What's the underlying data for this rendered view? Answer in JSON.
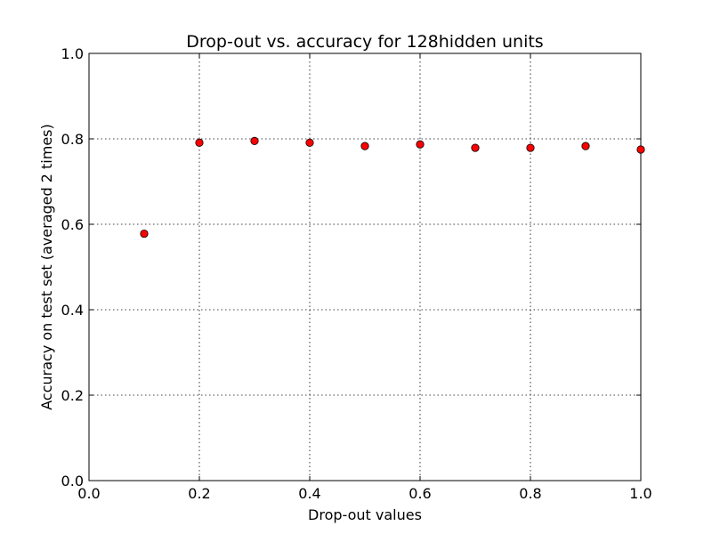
{
  "chart_data": {
    "type": "scatter",
    "title": "Drop-out vs. accuracy for 128hidden units",
    "xlabel": "Drop-out values",
    "ylabel": "Accuracy on test set (averaged 2 times)",
    "xlim": [
      0.0,
      1.0
    ],
    "ylim": [
      0.0,
      1.0
    ],
    "xticks": [
      "0.0",
      "0.2",
      "0.4",
      "0.6",
      "0.8",
      "1.0"
    ],
    "yticks": [
      "0.0",
      "0.2",
      "0.4",
      "0.6",
      "0.8",
      "1.0"
    ],
    "grid": true,
    "marker_color": "#ff0000",
    "series": [
      {
        "x": [
          0.1,
          0.2,
          0.3,
          0.4,
          0.5,
          0.6,
          0.7,
          0.8,
          0.9,
          1.0
        ],
        "y": [
          0.578,
          0.791,
          0.795,
          0.791,
          0.783,
          0.787,
          0.779,
          0.779,
          0.783,
          0.775
        ]
      }
    ]
  }
}
